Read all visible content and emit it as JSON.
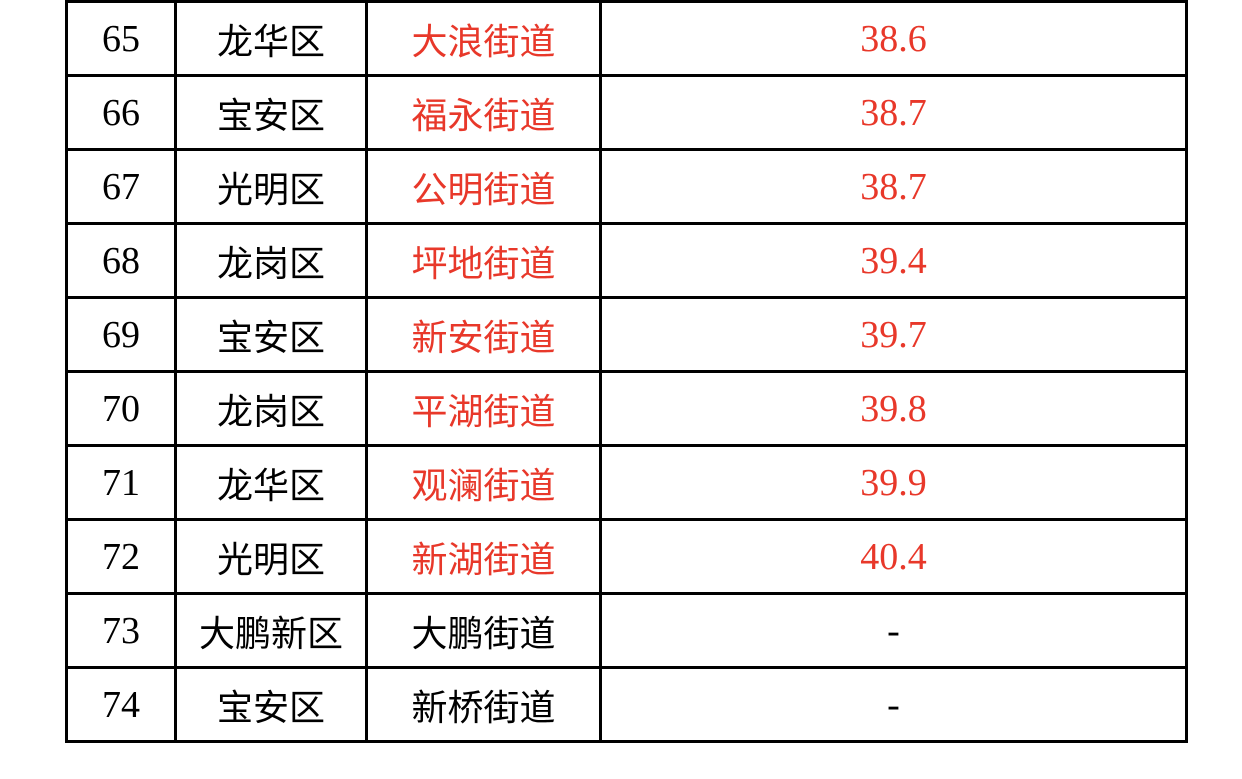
{
  "colors": {
    "highlight": "#e8382a",
    "text": "#000000"
  },
  "rows": [
    {
      "no": "65",
      "district": "龙华区",
      "street": "大浪街道",
      "value": "38.6",
      "highlight": true
    },
    {
      "no": "66",
      "district": "宝安区",
      "street": "福永街道",
      "value": "38.7",
      "highlight": true
    },
    {
      "no": "67",
      "district": "光明区",
      "street": "公明街道",
      "value": "38.7",
      "highlight": true
    },
    {
      "no": "68",
      "district": "龙岗区",
      "street": "坪地街道",
      "value": "39.4",
      "highlight": true
    },
    {
      "no": "69",
      "district": "宝安区",
      "street": "新安街道",
      "value": "39.7",
      "highlight": true
    },
    {
      "no": "70",
      "district": "龙岗区",
      "street": "平湖街道",
      "value": "39.8",
      "highlight": true
    },
    {
      "no": "71",
      "district": "龙华区",
      "street": "观澜街道",
      "value": "39.9",
      "highlight": true
    },
    {
      "no": "72",
      "district": "光明区",
      "street": "新湖街道",
      "value": "40.4",
      "highlight": true
    },
    {
      "no": "73",
      "district": "大鹏新区",
      "street": "大鹏街道",
      "value": "-",
      "highlight": false
    },
    {
      "no": "74",
      "district": "宝安区",
      "street": "新桥街道",
      "value": "-",
      "highlight": false
    }
  ]
}
